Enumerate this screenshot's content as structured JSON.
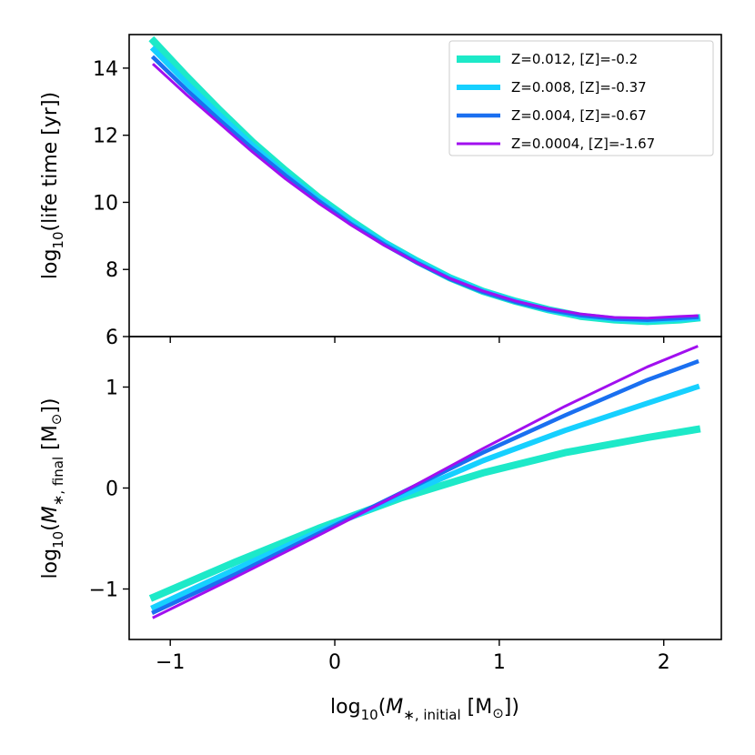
{
  "chart_data": [
    {
      "panel": "top",
      "type": "line",
      "title": "",
      "xlabel": "",
      "ylabel": "log10(life time [yr])",
      "ylabel_base": "log",
      "ylabel_sub": "10",
      "ylabel_rest": "(life time [yr])",
      "xlim": [
        -1.25,
        2.35
      ],
      "ylim": [
        6,
        15
      ],
      "yticks": [
        6,
        8,
        10,
        12,
        14
      ],
      "ytick_labels": [
        "6",
        "8",
        "10",
        "12",
        "14"
      ],
      "grid": false,
      "legend_position": "top-right",
      "x": [
        -1.1,
        -0.9,
        -0.7,
        -0.5,
        -0.3,
        -0.1,
        0.1,
        0.3,
        0.5,
        0.7,
        0.9,
        1.1,
        1.3,
        1.5,
        1.7,
        1.9,
        2.1,
        2.2
      ],
      "series": [
        {
          "name": "Z=0.012, [Z]=-0.2",
          "color": "#1de9c8",
          "width": 8,
          "values": [
            14.8,
            13.75,
            12.75,
            11.8,
            10.95,
            10.15,
            9.45,
            8.8,
            8.25,
            7.75,
            7.35,
            7.05,
            6.8,
            6.6,
            6.5,
            6.45,
            6.5,
            6.55
          ]
        },
        {
          "name": "Z=0.008, [Z]=-0.37",
          "color": "#16d0ff",
          "width": 6,
          "values": [
            14.55,
            13.55,
            12.6,
            11.7,
            10.85,
            10.1,
            9.4,
            8.8,
            8.25,
            7.75,
            7.35,
            7.05,
            6.8,
            6.62,
            6.52,
            6.48,
            6.52,
            6.55
          ]
        },
        {
          "name": "Z=0.004, [Z]=-0.67",
          "color": "#1a6ff0",
          "width": 4.5,
          "values": [
            14.3,
            13.35,
            12.45,
            11.6,
            10.8,
            10.05,
            9.35,
            8.75,
            8.2,
            7.72,
            7.33,
            7.03,
            6.8,
            6.63,
            6.53,
            6.5,
            6.55,
            6.58
          ]
        },
        {
          "name": "Z=0.0004, [Z]=-1.67",
          "color": "#a10fef",
          "width": 3,
          "values": [
            14.1,
            13.2,
            12.35,
            11.5,
            10.7,
            9.98,
            9.32,
            8.72,
            8.2,
            7.73,
            7.36,
            7.06,
            6.83,
            6.67,
            6.57,
            6.55,
            6.6,
            6.62
          ]
        }
      ]
    },
    {
      "panel": "bottom",
      "type": "line",
      "title": "",
      "xlabel": "log10(M*, initial [M☉])",
      "xlabel_base": "log",
      "xlabel_sub": "10",
      "xlabel_open": "(",
      "xlabel_m": "M",
      "xlabel_msub": "∗, initial",
      "xlabel_rest": " [M",
      "xlabel_sun": "⊙",
      "xlabel_close": "])",
      "ylabel": "log10(M*, final [M☉])",
      "ylabel_base": "log",
      "ylabel_sub": "10",
      "ylabel_open": "(",
      "ylabel_m": "M",
      "ylabel_msub": "∗, final",
      "ylabel_rest": " [M",
      "ylabel_sun": "⊙",
      "ylabel_close": "])",
      "xlim": [
        -1.25,
        2.35
      ],
      "ylim": [
        -1.5,
        1.5
      ],
      "xticks": [
        -1,
        0,
        1,
        2
      ],
      "xtick_labels": [
        "−1",
        "0",
        "1",
        "2"
      ],
      "yticks": [
        -1,
        0,
        1
      ],
      "ytick_labels": [
        "−1",
        "0",
        "1"
      ],
      "grid": false,
      "x": [
        -1.1,
        -0.6,
        -0.1,
        0.4,
        0.9,
        1.4,
        1.9,
        2.2
      ],
      "series": [
        {
          "name": "Z=0.012, [Z]=-0.2",
          "color": "#1de9c8",
          "width": 8,
          "values": [
            -1.08,
            -0.73,
            -0.4,
            -0.1,
            0.15,
            0.35,
            0.5,
            0.58
          ]
        },
        {
          "name": "Z=0.008, [Z]=-0.37",
          "color": "#16d0ff",
          "width": 6,
          "values": [
            -1.18,
            -0.8,
            -0.43,
            -0.08,
            0.27,
            0.57,
            0.84,
            1.0
          ]
        },
        {
          "name": "Z=0.004, [Z]=-0.67",
          "color": "#1a6ff0",
          "width": 4.5,
          "values": [
            -1.23,
            -0.85,
            -0.45,
            -0.05,
            0.35,
            0.72,
            1.07,
            1.25
          ]
        },
        {
          "name": "Z=0.0004, [Z]=-1.67",
          "color": "#a10fef",
          "width": 3,
          "values": [
            -1.28,
            -0.88,
            -0.47,
            -0.05,
            0.39,
            0.81,
            1.2,
            1.4
          ]
        }
      ]
    }
  ]
}
